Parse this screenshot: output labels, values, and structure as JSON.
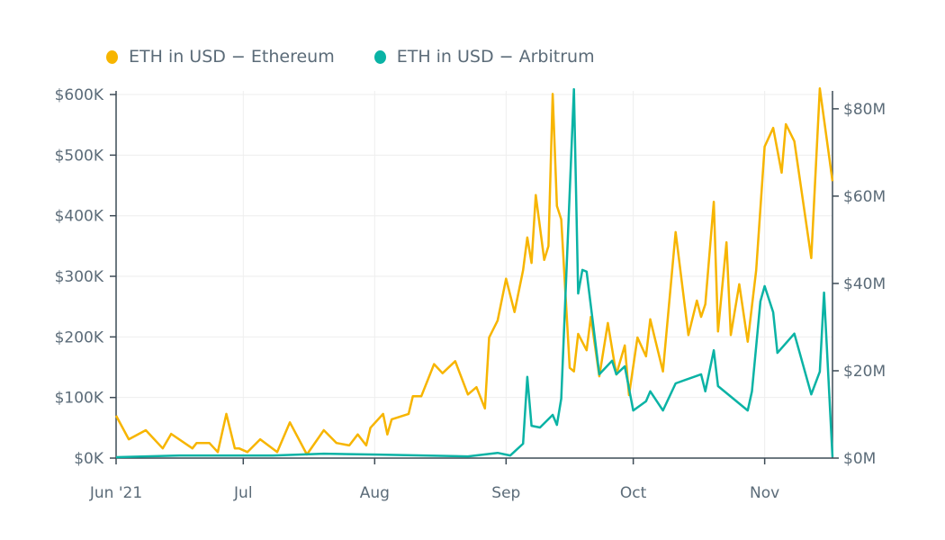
{
  "colors": {
    "ethereum": "#f7b500",
    "arbitrum": "#0ab3a5",
    "axis": "#3d4b56",
    "grid": "#eeeeee",
    "text": "#5b6b78"
  },
  "chart_data": {
    "type": "line",
    "title": "",
    "legend_placement": "top-left",
    "grid": true,
    "x_start": "2021-06-01",
    "x_end": "2021-11-17",
    "x_ticks": [
      {
        "date": "2021-06-01",
        "label": "Jun '21"
      },
      {
        "date": "2021-07-01",
        "label": "Jul"
      },
      {
        "date": "2021-08-01",
        "label": "Aug"
      },
      {
        "date": "2021-09-01",
        "label": "Sep"
      },
      {
        "date": "2021-10-01",
        "label": "Oct"
      },
      {
        "date": "2021-11-01",
        "label": "Nov"
      }
    ],
    "y_left": {
      "unit": "USD thousands",
      "ylim": [
        0,
        606
      ],
      "ticks": [
        0,
        100,
        200,
        300,
        400,
        500,
        600
      ],
      "tick_labels": [
        "$0K",
        "$100K",
        "$200K",
        "$300K",
        "$400K",
        "$500K",
        "$600K"
      ]
    },
    "y_right": {
      "unit": "USD millions",
      "ylim": [
        0,
        84.1
      ],
      "ticks": [
        0,
        20,
        40,
        60,
        80
      ],
      "tick_labels": [
        "$0M",
        "$20M",
        "$40M",
        "$60M",
        "$80M"
      ]
    },
    "series": [
      {
        "name": "ETH in USD − Ethereum",
        "axis": "left",
        "color": "#f7b500",
        "points": [
          [
            "2021-06-01",
            70
          ],
          [
            "2021-06-04",
            31
          ],
          [
            "2021-06-08",
            46
          ],
          [
            "2021-06-12",
            16
          ],
          [
            "2021-06-14",
            40
          ],
          [
            "2021-06-19",
            16
          ],
          [
            "2021-06-20",
            25
          ],
          [
            "2021-06-23",
            25
          ],
          [
            "2021-06-25",
            10
          ],
          [
            "2021-06-27",
            73
          ],
          [
            "2021-06-29",
            16
          ],
          [
            "2021-06-30",
            16
          ],
          [
            "2021-07-02",
            10
          ],
          [
            "2021-07-05",
            31
          ],
          [
            "2021-07-09",
            10
          ],
          [
            "2021-07-12",
            59
          ],
          [
            "2021-07-16",
            6
          ],
          [
            "2021-07-20",
            46
          ],
          [
            "2021-07-23",
            25
          ],
          [
            "2021-07-26",
            21
          ],
          [
            "2021-07-28",
            39
          ],
          [
            "2021-07-30",
            21
          ],
          [
            "2021-07-31",
            50
          ],
          [
            "2021-08-03",
            73
          ],
          [
            "2021-08-04",
            39
          ],
          [
            "2021-08-05",
            64
          ],
          [
            "2021-08-09",
            73
          ],
          [
            "2021-08-10",
            102
          ],
          [
            "2021-08-12",
            102
          ],
          [
            "2021-08-15",
            155
          ],
          [
            "2021-08-17",
            140
          ],
          [
            "2021-08-20",
            160
          ],
          [
            "2021-08-23",
            105
          ],
          [
            "2021-08-25",
            117
          ],
          [
            "2021-08-27",
            82
          ],
          [
            "2021-08-28",
            199
          ],
          [
            "2021-08-30",
            227
          ],
          [
            "2021-09-01",
            296
          ],
          [
            "2021-09-03",
            241
          ],
          [
            "2021-09-05",
            310
          ],
          [
            "2021-09-06",
            364
          ],
          [
            "2021-09-07",
            322
          ],
          [
            "2021-09-08",
            434
          ],
          [
            "2021-09-10",
            327
          ],
          [
            "2021-09-11",
            350
          ],
          [
            "2021-09-12",
            601
          ],
          [
            "2021-09-13",
            416
          ],
          [
            "2021-09-14",
            394
          ],
          [
            "2021-09-16",
            149
          ],
          [
            "2021-09-17",
            143
          ],
          [
            "2021-09-18",
            205
          ],
          [
            "2021-09-20",
            178
          ],
          [
            "2021-09-21",
            233
          ],
          [
            "2021-09-23",
            135
          ],
          [
            "2021-09-25",
            223
          ],
          [
            "2021-09-27",
            138
          ],
          [
            "2021-09-29",
            186
          ],
          [
            "2021-09-30",
            104
          ],
          [
            "2021-10-02",
            199
          ],
          [
            "2021-10-04",
            168
          ],
          [
            "2021-10-05",
            229
          ],
          [
            "2021-10-08",
            143
          ],
          [
            "2021-10-11",
            373
          ],
          [
            "2021-10-14",
            203
          ],
          [
            "2021-10-16",
            260
          ],
          [
            "2021-10-17",
            233
          ],
          [
            "2021-10-18",
            254
          ],
          [
            "2021-10-20",
            423
          ],
          [
            "2021-10-21",
            209
          ],
          [
            "2021-10-23",
            356
          ],
          [
            "2021-10-24",
            203
          ],
          [
            "2021-10-26",
            287
          ],
          [
            "2021-10-28",
            192
          ],
          [
            "2021-10-30",
            310
          ],
          [
            "2021-11-01",
            514
          ],
          [
            "2021-11-03",
            545
          ],
          [
            "2021-11-05",
            471
          ],
          [
            "2021-11-06",
            551
          ],
          [
            "2021-11-08",
            523
          ],
          [
            "2021-11-12",
            330
          ],
          [
            "2021-11-14",
            610
          ],
          [
            "2021-11-17",
            457
          ]
        ]
      },
      {
        "name": "ETH in USD − Arbitrum",
        "axis": "right",
        "color": "#0ab3a5",
        "points": [
          [
            "2021-06-01",
            0.2
          ],
          [
            "2021-06-16",
            0.6
          ],
          [
            "2021-07-08",
            0.6
          ],
          [
            "2021-07-20",
            1.0
          ],
          [
            "2021-08-02",
            0.8
          ],
          [
            "2021-08-23",
            0.4
          ],
          [
            "2021-08-30",
            1.2
          ],
          [
            "2021-09-02",
            0.6
          ],
          [
            "2021-09-05",
            3.3
          ],
          [
            "2021-09-06",
            18.6
          ],
          [
            "2021-09-07",
            7.4
          ],
          [
            "2021-09-09",
            7.0
          ],
          [
            "2021-09-12",
            9.9
          ],
          [
            "2021-09-13",
            7.6
          ],
          [
            "2021-09-14",
            13.6
          ],
          [
            "2021-09-17",
            84.5
          ],
          [
            "2021-09-18",
            37.7
          ],
          [
            "2021-09-19",
            43.1
          ],
          [
            "2021-09-20",
            42.7
          ],
          [
            "2021-09-23",
            19.2
          ],
          [
            "2021-09-26",
            22.3
          ],
          [
            "2021-09-27",
            19.2
          ],
          [
            "2021-09-29",
            21.0
          ],
          [
            "2021-10-01",
            10.9
          ],
          [
            "2021-10-04",
            13.0
          ],
          [
            "2021-10-05",
            15.3
          ],
          [
            "2021-10-08",
            10.9
          ],
          [
            "2021-10-11",
            17.1
          ],
          [
            "2021-10-17",
            19.2
          ],
          [
            "2021-10-18",
            15.3
          ],
          [
            "2021-10-20",
            24.7
          ],
          [
            "2021-10-21",
            16.5
          ],
          [
            "2021-10-28",
            10.9
          ],
          [
            "2021-10-29",
            15.3
          ],
          [
            "2021-10-31",
            35.9
          ],
          [
            "2021-11-01",
            39.4
          ],
          [
            "2021-11-03",
            33.4
          ],
          [
            "2021-11-04",
            24.1
          ],
          [
            "2021-11-08",
            28.5
          ],
          [
            "2021-11-12",
            14.6
          ],
          [
            "2021-11-14",
            19.8
          ],
          [
            "2021-11-15",
            37.9
          ],
          [
            "2021-11-17",
            0.2
          ]
        ]
      }
    ]
  }
}
